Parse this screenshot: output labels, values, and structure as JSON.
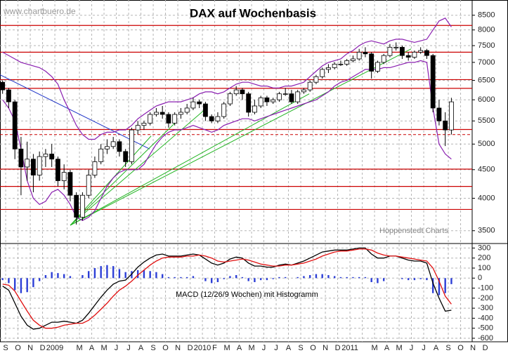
{
  "chart_data": [
    {
      "type": "candlestick",
      "title": "DAX auf Wochenbasis",
      "watermark": "www.chartbuero.de",
      "source": "Hoppenstedt Charts",
      "log_scale": true,
      "grid": true,
      "xlim": [
        -0.46,
        37.94
      ],
      "ylim": [
        3320,
        9050
      ],
      "yticks": [
        3500,
        4000,
        4500,
        5000,
        5500,
        6000,
        6500,
        7000,
        7500,
        8000,
        8500
      ],
      "x": [
        -0.25,
        0.25,
        0.75,
        1.25,
        1.75,
        2.25,
        2.75,
        3.25,
        3.75,
        4.25,
        4.75,
        5.25,
        5.75,
        6.25,
        6.75,
        7.25,
        7.75,
        8.25,
        8.75,
        9.25,
        9.75,
        10.25,
        10.75,
        11.25,
        11.75,
        12.25,
        12.75,
        13.25,
        13.75,
        14.25,
        14.75,
        15.25,
        15.75,
        16.25,
        16.75,
        17.25,
        17.75,
        18.25,
        18.75,
        19.25,
        19.75,
        20.25,
        20.75,
        21.25,
        21.75,
        22.25,
        22.75,
        23.25,
        23.75,
        24.25,
        24.75,
        25.25,
        25.75,
        26.25,
        26.75,
        27.25,
        27.75,
        28.25,
        28.75,
        29.25,
        29.75,
        30.25,
        30.75,
        31.25,
        31.75,
        32.25,
        32.75,
        33.25,
        33.75,
        34.25,
        34.75,
        35.25,
        35.75,
        36.25
      ],
      "open": [
        6450,
        6250,
        5950,
        4900,
        4550,
        4700,
        4400,
        4750,
        4800,
        4700,
        4300,
        4450,
        4050,
        3700,
        4050,
        4400,
        4650,
        4900,
        4950,
        5050,
        4850,
        4650,
        5300,
        5400,
        5450,
        5650,
        5700,
        5650,
        5450,
        5650,
        5700,
        5800,
        5950,
        5900,
        5600,
        5500,
        5600,
        5900,
        6150,
        6250,
        6150,
        5700,
        5850,
        6050,
        5950,
        6000,
        6150,
        6150,
        5950,
        6200,
        6250,
        6450,
        6600,
        6800,
        6850,
        6950,
        6950,
        7050,
        7100,
        7300,
        7250,
        6750,
        7000,
        7200,
        7450,
        7450,
        7200,
        7150,
        7300,
        7350,
        7200,
        5800,
        5500,
        5300
      ],
      "high": [
        6500,
        6300,
        6000,
        5150,
        5050,
        4800,
        4850,
        4900,
        5000,
        4750,
        4600,
        4500,
        4100,
        4100,
        4500,
        4750,
        5000,
        5100,
        5150,
        5100,
        4900,
        5350,
        5500,
        5500,
        5700,
        5800,
        5850,
        5700,
        5700,
        5800,
        5900,
        6050,
        6000,
        5950,
        5650,
        5700,
        5950,
        6200,
        6350,
        6300,
        6200,
        6000,
        6100,
        6100,
        6050,
        6200,
        6300,
        6250,
        6250,
        6300,
        6500,
        6650,
        6850,
        6950,
        7000,
        7050,
        7100,
        7200,
        7400,
        7450,
        7300,
        7050,
        7250,
        7550,
        7600,
        7500,
        7300,
        7350,
        7450,
        7400,
        7250,
        6000,
        5700,
        6050
      ],
      "low": [
        6150,
        5800,
        4700,
        4050,
        4300,
        4100,
        4300,
        4550,
        4550,
        4200,
        4150,
        3950,
        3590,
        3650,
        4000,
        4350,
        4600,
        4800,
        4900,
        4750,
        4550,
        4600,
        5200,
        5300,
        5400,
        5600,
        5550,
        5350,
        5400,
        5550,
        5650,
        5750,
        5800,
        5500,
        5450,
        5450,
        5550,
        5850,
        6100,
        6000,
        5600,
        5650,
        5800,
        5850,
        5900,
        5950,
        6100,
        5900,
        5900,
        6150,
        6200,
        6400,
        6550,
        6700,
        6800,
        6900,
        6900,
        7000,
        7050,
        7150,
        6550,
        6700,
        6950,
        7150,
        7350,
        7100,
        7050,
        7100,
        7250,
        7100,
        5700,
        5400,
        4960,
        5200
      ],
      "close": [
        6250,
        5950,
        4900,
        4550,
        4700,
        4400,
        4750,
        4800,
        4700,
        4300,
        4450,
        4050,
        3700,
        4050,
        4400,
        4650,
        4900,
        4950,
        5050,
        4850,
        4650,
        5300,
        5400,
        5450,
        5650,
        5700,
        5650,
        5450,
        5650,
        5700,
        5800,
        5950,
        5900,
        5600,
        5500,
        5600,
        5900,
        6150,
        6250,
        6150,
        5700,
        5850,
        6050,
        5950,
        6000,
        6150,
        6150,
        5950,
        6200,
        6250,
        6450,
        6600,
        6800,
        6850,
        6950,
        6950,
        7050,
        7100,
        7300,
        7250,
        6750,
        7000,
        7200,
        7450,
        7450,
        7200,
        7150,
        7300,
        7350,
        7200,
        5800,
        5500,
        5300,
        5950
      ],
      "up_color": "#ffffff",
      "down_color": "#000000",
      "bands": {
        "color": "#8a1fb0",
        "upper": [
          7300,
          7200,
          7100,
          7000,
          6950,
          6900,
          6850,
          6750,
          6600,
          6400,
          6000,
          5700,
          5400,
          5200,
          5100,
          5100,
          5200,
          5250,
          5250,
          5300,
          5300,
          5400,
          5550,
          5650,
          5750,
          5850,
          5900,
          5950,
          5950,
          5950,
          6000,
          6050,
          6150,
          6200,
          6200,
          6150,
          6200,
          6300,
          6400,
          6450,
          6450,
          6400,
          6350,
          6350,
          6300,
          6300,
          6350,
          6350,
          6400,
          6450,
          6600,
          6750,
          6900,
          7000,
          7050,
          7100,
          7250,
          7350,
          7500,
          7600,
          7650,
          7600,
          7550,
          7650,
          7700,
          7700,
          7650,
          7600,
          7650,
          7700,
          8000,
          8300,
          8400,
          8100
        ],
        "lower": [
          6000,
          5800,
          5500,
          4900,
          4300,
          4000,
          3900,
          3950,
          4100,
          4150,
          4050,
          3900,
          3700,
          3650,
          3700,
          3800,
          4000,
          4200,
          4350,
          4450,
          4500,
          4500,
          4500,
          4600,
          4800,
          5000,
          5150,
          5250,
          5300,
          5300,
          5350,
          5400,
          5350,
          5300,
          5250,
          5300,
          5400,
          5450,
          5500,
          5550,
          5550,
          5500,
          5550,
          5600,
          5650,
          5700,
          5750,
          5800,
          5850,
          5900,
          5950,
          6000,
          6100,
          6200,
          6350,
          6450,
          6500,
          6600,
          6700,
          6800,
          6800,
          6800,
          6850,
          6850,
          6900,
          6950,
          7000,
          7000,
          7050,
          7000,
          5800,
          5000,
          4800,
          4700
        ]
      },
      "levels": {
        "color": "#cc0000",
        "values": [
          8150,
          7300,
          6520,
          6290,
          5310,
          4510,
          4200,
          3820
        ]
      },
      "dashed_levels": [
        5200
      ],
      "trendlines": [
        {
          "color": "#1f35c8",
          "x": [
            -0.46,
            11.71
          ],
          "values": [
            6650,
            4900
          ]
        },
        {
          "color": "#22b422",
          "x": [
            5.26,
            11.83
          ],
          "values": [
            3580,
            5170
          ]
        },
        {
          "color": "#22b422",
          "x": [
            5.26,
            13.83
          ],
          "values": [
            3580,
            5470
          ]
        },
        {
          "color": "#22b422",
          "x": [
            5.26,
            16.11
          ],
          "values": [
            3580,
            5740
          ]
        },
        {
          "color": "#22b422",
          "x": [
            5.26,
            24.69
          ],
          "values": [
            3580,
            6150
          ]
        },
        {
          "color": "#22b422",
          "x": [
            5.26,
            32.97
          ],
          "values": [
            3580,
            7400
          ]
        }
      ]
    },
    {
      "type": "line",
      "title": "MACD (12/26/9 Wochen) mit Histogramm",
      "grid": true,
      "xlim": [
        -0.46,
        37.94
      ],
      "ylim": [
        -635,
        345
      ],
      "yticks": [
        300,
        200,
        100,
        0,
        -100,
        -200,
        -300,
        -400,
        -500,
        -600
      ],
      "categories": [
        "S",
        "O",
        "N",
        "D",
        "2009",
        null,
        "M",
        "A",
        "M",
        "J",
        "J",
        "A",
        "S",
        "O",
        "N",
        "D",
        "2010",
        "F",
        "M",
        "A",
        "M",
        "J",
        "J",
        "A",
        "S",
        "O",
        "N",
        "D",
        "2011",
        null,
        "M",
        "A",
        "M",
        "J",
        "J",
        "A",
        "S",
        "O",
        "N",
        "D"
      ],
      "x": [
        -0.25,
        0.25,
        0.75,
        1.25,
        1.75,
        2.25,
        2.75,
        3.25,
        3.75,
        4.25,
        4.75,
        5.25,
        5.75,
        6.25,
        6.75,
        7.25,
        7.75,
        8.25,
        8.75,
        9.25,
        9.75,
        10.25,
        10.75,
        11.25,
        11.75,
        12.25,
        12.75,
        13.25,
        13.75,
        14.25,
        14.75,
        15.25,
        15.75,
        16.25,
        16.75,
        17.25,
        17.75,
        18.25,
        18.75,
        19.25,
        19.75,
        20.25,
        20.75,
        21.25,
        21.75,
        22.25,
        22.75,
        23.25,
        23.75,
        24.25,
        24.75,
        25.25,
        25.75,
        26.25,
        26.75,
        27.25,
        27.75,
        28.25,
        28.75,
        29.25,
        29.75,
        30.25,
        30.75,
        31.25,
        31.75,
        32.25,
        32.75,
        33.25,
        33.75,
        34.25,
        34.75,
        35.25,
        35.75,
        36.25
      ],
      "histogram": {
        "color": "#2d3fd6",
        "values": [
          -20,
          -50,
          -120,
          -150,
          -140,
          -90,
          -30,
          30,
          60,
          50,
          40,
          20,
          0,
          30,
          70,
          100,
          120,
          130,
          120,
          90,
          60,
          70,
          80,
          80,
          70,
          60,
          40,
          10,
          10,
          10,
          10,
          20,
          0,
          -30,
          -50,
          -40,
          -10,
          20,
          30,
          10,
          -30,
          -40,
          -20,
          -20,
          -10,
          10,
          10,
          0,
          10,
          20,
          30,
          40,
          40,
          30,
          20,
          10,
          10,
          10,
          10,
          10,
          -40,
          -50,
          -30,
          0,
          0,
          -10,
          -20,
          -20,
          -10,
          -20,
          -150,
          -170,
          -150,
          -60
        ]
      },
      "series": [
        {
          "color": "#000000",
          "values": [
            -80,
            -120,
            -250,
            -380,
            -470,
            -510,
            -500,
            -470,
            -440,
            -440,
            -430,
            -440,
            -450,
            -420,
            -350,
            -270,
            -190,
            -120,
            -60,
            -30,
            -20,
            40,
            110,
            160,
            200,
            230,
            240,
            220,
            220,
            220,
            230,
            240,
            230,
            190,
            150,
            130,
            150,
            190,
            210,
            200,
            150,
            120,
            120,
            110,
            110,
            130,
            140,
            130,
            150,
            170,
            200,
            230,
            260,
            270,
            280,
            280,
            280,
            290,
            300,
            300,
            240,
            200,
            200,
            220,
            220,
            200,
            180,
            170,
            170,
            150,
            -50,
            -200,
            -330,
            -320
          ]
        },
        {
          "color": "#e01010",
          "values": [
            -60,
            -70,
            -130,
            -230,
            -330,
            -420,
            -470,
            -500,
            -500,
            -490,
            -470,
            -460,
            -450,
            -450,
            -420,
            -370,
            -310,
            -250,
            -180,
            -120,
            -80,
            -30,
            30,
            80,
            130,
            170,
            200,
            210,
            210,
            210,
            220,
            220,
            230,
            220,
            200,
            170,
            160,
            170,
            180,
            190,
            180,
            160,
            140,
            130,
            120,
            120,
            130,
            130,
            140,
            150,
            170,
            190,
            220,
            240,
            260,
            270,
            270,
            280,
            290,
            290,
            280,
            250,
            230,
            220,
            220,
            210,
            200,
            190,
            180,
            170,
            100,
            -30,
            -180,
            -260
          ]
        }
      ]
    }
  ]
}
